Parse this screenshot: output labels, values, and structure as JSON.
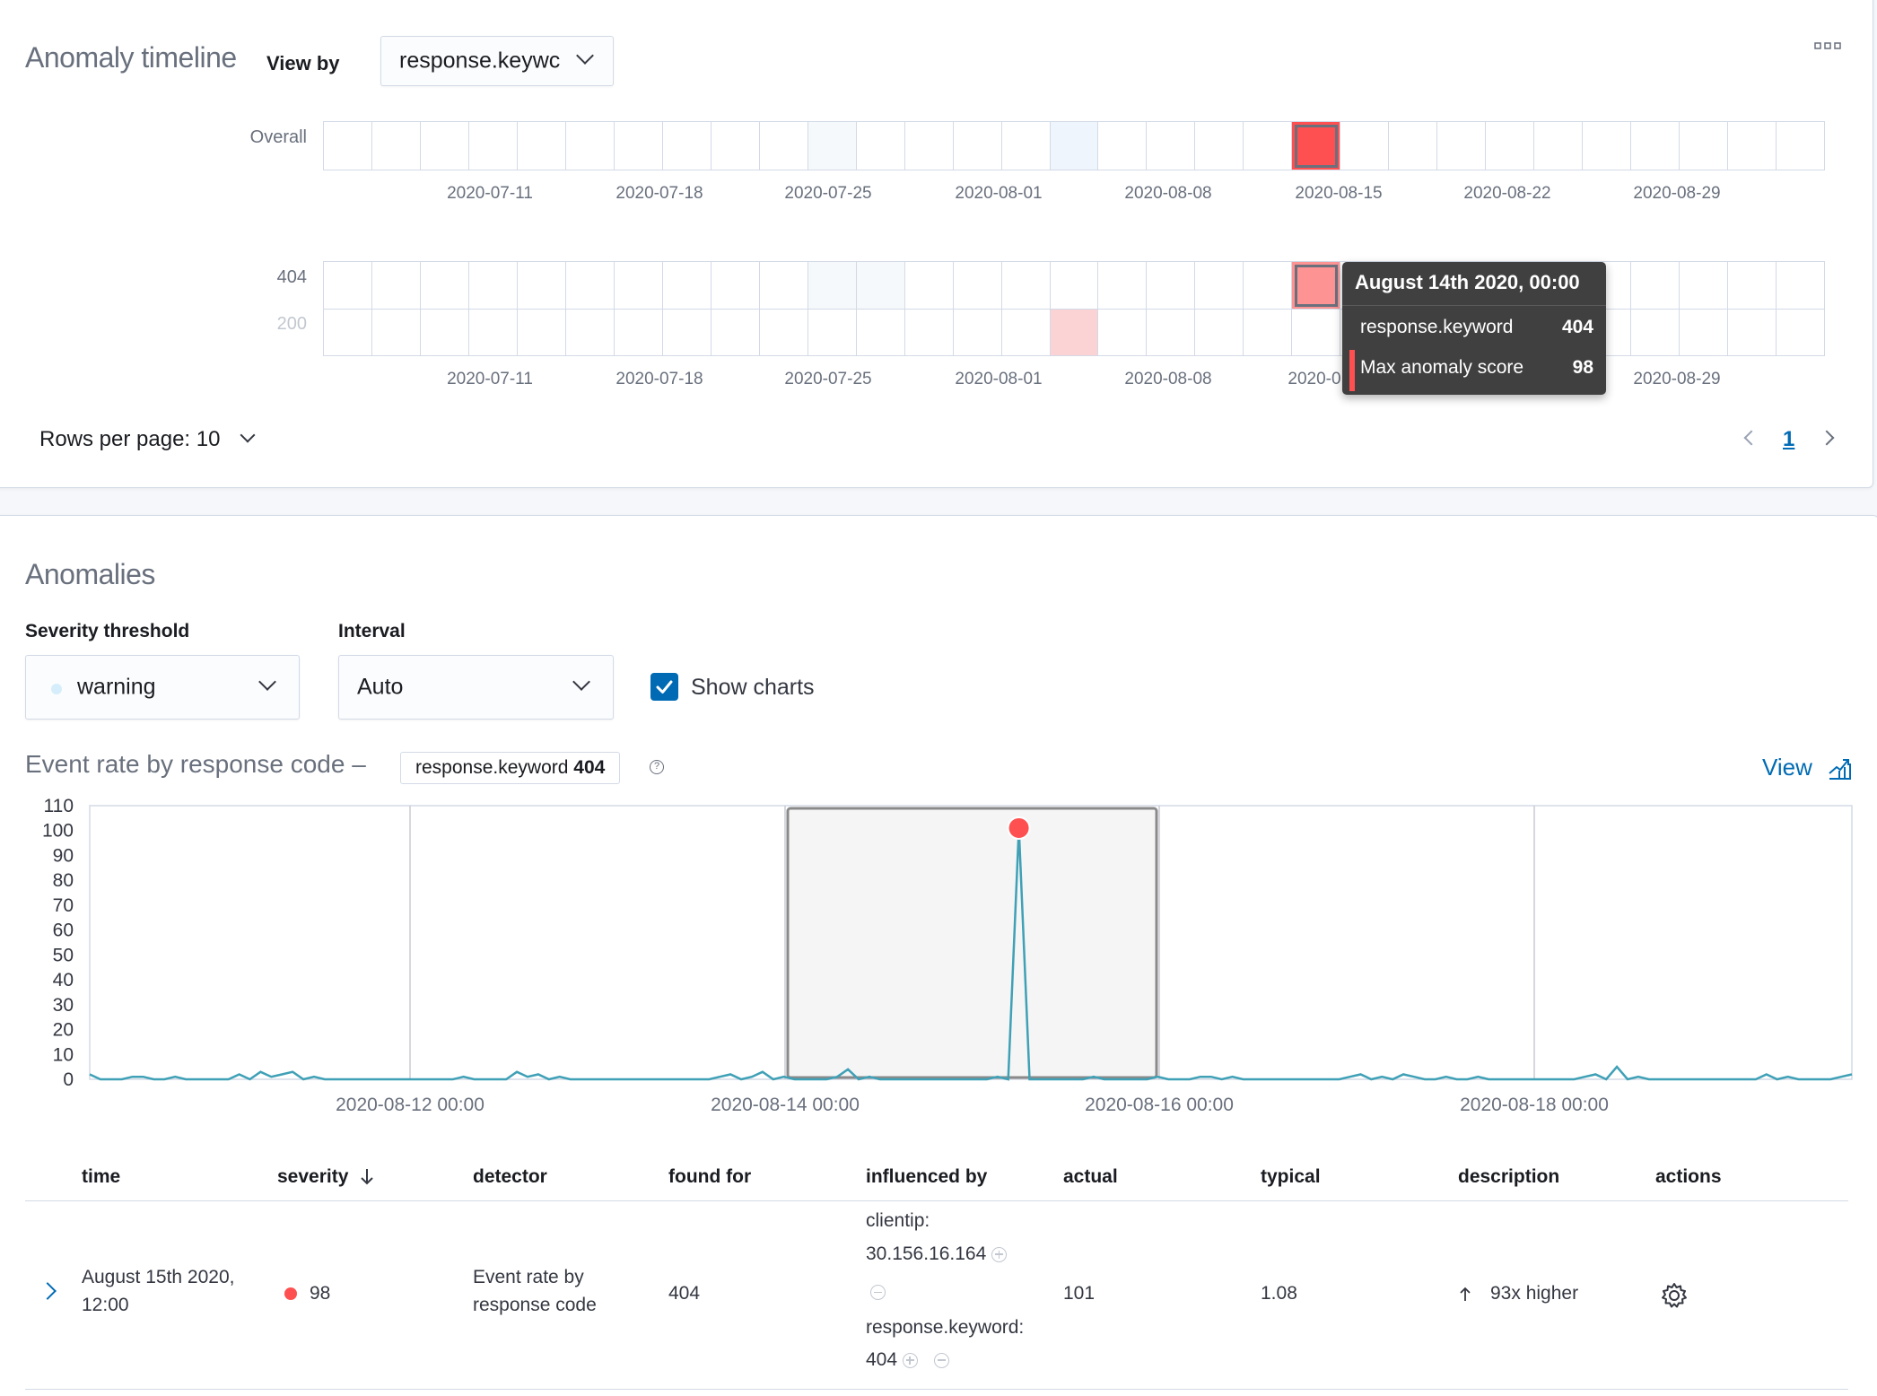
{
  "timeline": {
    "title": "Anomaly timeline",
    "view_by_label": "View by",
    "view_by_value": "response.keywc",
    "overall_label": "Overall",
    "date_ticks": [
      "2020-07-11",
      "2020-07-18",
      "2020-07-25",
      "2020-08-01",
      "2020-08-08",
      "2020-08-15",
      "2020-08-22",
      "2020-08-29"
    ],
    "swimlane_rows": [
      "404",
      "200"
    ],
    "bottom_ticks": [
      "2020-07-11",
      "2020-07-18",
      "2020-07-25",
      "2020-08-01",
      "2020-08-08",
      "2020-0",
      "2020-08-29"
    ],
    "rows_per_page": "Rows per page: 10",
    "page_number": "1",
    "tooltip": {
      "title": "August 14th 2020, 00:00",
      "field_name": "response.keyword",
      "field_value": "404",
      "score_label": "Max anomaly score",
      "score_value": "98"
    },
    "colors": {
      "critical": "#fe5050",
      "critical_light": "#fd9393",
      "minor_pink": "#fbd3d5",
      "low_blue": "#eef5fc",
      "low_blue2": "#f6f9fc"
    }
  },
  "anomalies": {
    "title": "Anomalies",
    "severity_label": "Severity threshold",
    "severity_value": "warning",
    "interval_label": "Interval",
    "interval_value": "Auto",
    "show_charts_label": "Show charts",
    "show_charts_checked": true,
    "chart_title_prefix": "Event rate by response code –",
    "chart_badge_field": "response.keyword",
    "chart_badge_value": "404",
    "view_link": "View"
  },
  "chart_data": {
    "type": "line",
    "title": "Event rate by response code",
    "ylim": [
      0,
      110
    ],
    "y_ticks": [
      "110",
      "100",
      "90",
      "80",
      "70",
      "60",
      "50",
      "40",
      "30",
      "20",
      "10",
      "0"
    ],
    "x_ticks": [
      "2020-08-12 00:00",
      "2020-08-14 00:00",
      "2020-08-16 00:00",
      "2020-08-18 00:00"
    ],
    "highlight_range": [
      "2020-08-14 00:00",
      "2020-08-16 00:00"
    ],
    "anomaly_point": {
      "x": "2020-08-15 12:00",
      "y": 101,
      "score": 98
    },
    "series": [
      {
        "values": [
          2,
          0,
          0,
          0,
          1,
          1,
          0,
          0,
          1,
          0,
          0,
          0,
          0,
          0,
          2,
          0,
          3,
          1,
          2,
          3,
          0,
          1,
          0,
          0,
          0,
          0,
          0,
          0,
          0,
          0,
          0,
          0,
          0,
          0,
          0,
          1,
          0,
          0,
          0,
          0,
          3,
          1,
          2,
          0,
          1,
          0,
          0,
          0,
          0,
          0,
          0,
          0,
          0,
          0,
          0,
          0,
          0,
          0,
          0,
          1,
          2,
          0,
          1,
          3,
          0,
          1,
          0,
          0,
          0,
          0,
          1,
          4,
          0,
          1,
          0,
          0,
          0,
          0,
          0,
          0,
          0,
          0,
          0,
          0,
          0,
          1,
          0,
          101,
          0,
          0,
          0,
          0,
          0,
          0,
          1,
          0,
          0,
          0,
          0,
          0,
          1,
          0,
          0,
          0,
          1,
          1,
          0,
          1,
          0,
          0,
          0,
          0,
          0,
          0,
          0,
          0,
          0,
          0,
          1,
          2,
          0,
          1,
          0,
          2,
          1,
          0,
          0,
          1,
          0,
          0,
          1,
          0,
          0,
          0,
          0,
          0,
          0,
          0,
          0,
          0,
          1,
          2,
          0,
          5,
          0,
          1,
          0,
          0,
          0,
          0,
          0,
          0,
          0,
          0,
          0,
          0,
          0,
          2,
          0,
          1,
          0,
          0,
          0,
          0,
          1,
          2
        ]
      }
    ]
  },
  "table": {
    "headers": [
      "time",
      "severity",
      "detector",
      "found for",
      "influenced by",
      "actual",
      "typical",
      "description",
      "actions"
    ],
    "row": {
      "time_line1": "August 15th 2020,",
      "time_line2": "12:00",
      "severity": "98",
      "detector_line1": "Event rate by",
      "detector_line2": "response code",
      "found_for": "404",
      "influencer1_name": "clientip:",
      "influencer1_value": "30.156.16.164",
      "influencer2_name": "response.keyword:",
      "influencer2_value": "404",
      "actual": "101",
      "typical": "1.08",
      "description": "93x higher"
    }
  }
}
